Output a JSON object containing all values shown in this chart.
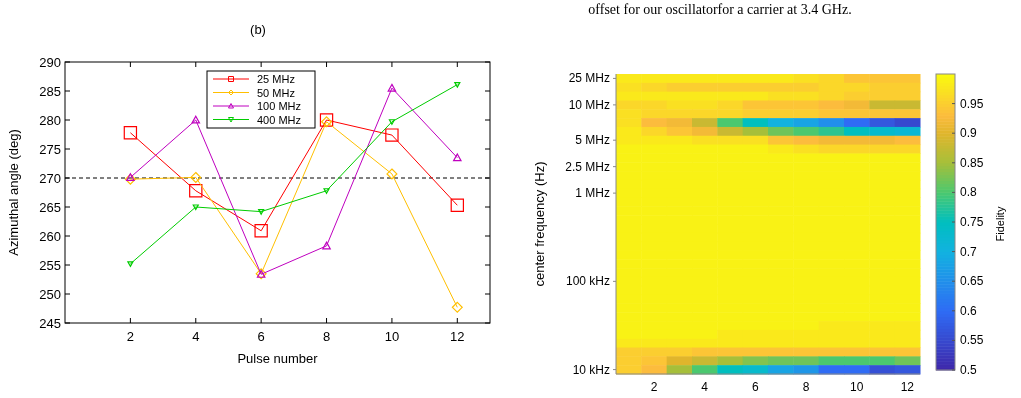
{
  "chart_data": [
    {
      "type": "line",
      "title": "(b)",
      "xlabel": "Pulse number",
      "ylabel": "Azimuthal angle (deg)",
      "x": [
        2,
        4,
        6,
        8,
        10,
        12
      ],
      "series": [
        {
          "name": "25 MHz",
          "color": "#ff0000",
          "marker": "square",
          "values": [
            277.8,
            267.8,
            260.9,
            280.0,
            277.4,
            265.3
          ]
        },
        {
          "name": "50 MHz",
          "color": "#ffbf00",
          "marker": "diamond",
          "values": [
            269.8,
            270.1,
            253.5,
            279.7,
            270.7,
            247.7
          ]
        },
        {
          "name": "100 MHz",
          "color": "#bf00bf",
          "marker": "triangle",
          "values": [
            270.1,
            280.0,
            253.4,
            258.3,
            285.5,
            273.5
          ]
        },
        {
          "name": "400 MHz",
          "color": "#00cc00",
          "marker": "triangle-down",
          "values": [
            255.2,
            265.0,
            264.2,
            267.8,
            279.7,
            286.1
          ]
        }
      ],
      "xlim": [
        0,
        13
      ],
      "xticks": [
        2,
        4,
        6,
        8,
        10,
        12
      ],
      "ylim": [
        245,
        290
      ],
      "yticks": [
        245,
        250,
        255,
        260,
        265,
        270,
        275,
        280,
        285,
        290
      ],
      "ref_lines": [
        {
          "axis": "y",
          "value": 270,
          "color": "#000000",
          "line_style": "dashed"
        }
      ],
      "legend": "top",
      "line_style": "solid",
      "grid": false
    },
    {
      "type": "heatmap",
      "ylabel": "center frequency (Hz)",
      "clabel": "Fidelity",
      "annotations": [
        "offset for our oscillatorfor a carrier at 3.4 GHz."
      ],
      "categories": [
        null,
        "2",
        null,
        "4",
        null,
        "6",
        null,
        "8",
        null,
        "10",
        null,
        "12"
      ],
      "y_categories": [
        "25 MHz",
        null,
        null,
        "10 MHz",
        null,
        null,
        null,
        "5 MHz",
        null,
        null,
        "2.5 MHz",
        null,
        null,
        "1 MHz",
        null,
        null,
        null,
        null,
        null,
        null,
        null,
        null,
        null,
        "100 kHz",
        null,
        null,
        null,
        null,
        null,
        null,
        null,
        null,
        null,
        "10 kHz"
      ],
      "clim": [
        0.5,
        1.0
      ],
      "cticks": [
        0.5,
        0.55,
        0.6,
        0.65,
        0.7,
        0.75,
        0.8,
        0.85,
        0.9,
        0.95
      ],
      "cells": [
        [
          0.98,
          0.98,
          0.98,
          0.98,
          0.98,
          0.98,
          0.98,
          0.97,
          0.96,
          0.94,
          0.94,
          0.94
        ],
        [
          0.97,
          0.96,
          0.95,
          0.95,
          0.95,
          0.95,
          0.95,
          0.95,
          0.96,
          0.96,
          0.95,
          0.95
        ],
        [
          0.98,
          0.98,
          0.98,
          0.98,
          0.98,
          0.98,
          0.97,
          0.97,
          0.96,
          0.95,
          0.95,
          0.95
        ],
        [
          0.96,
          0.96,
          0.97,
          0.97,
          0.96,
          0.94,
          0.94,
          0.94,
          0.93,
          0.92,
          0.88,
          0.88
        ],
        [
          0.97,
          0.96,
          0.96,
          0.96,
          0.96,
          0.95,
          0.95,
          0.95,
          0.94,
          0.94,
          0.94,
          0.94
        ],
        [
          0.97,
          0.93,
          0.92,
          0.88,
          0.8,
          0.75,
          0.7,
          0.68,
          0.65,
          0.6,
          0.57,
          0.55
        ],
        [
          0.98,
          0.96,
          0.94,
          0.92,
          0.88,
          0.85,
          0.82,
          0.8,
          0.78,
          0.75,
          0.73,
          0.72
        ],
        [
          0.98,
          0.98,
          0.98,
          0.97,
          0.97,
          0.97,
          0.94,
          0.93,
          0.92,
          0.92,
          0.92,
          0.93
        ],
        [
          0.99,
          0.99,
          0.99,
          0.99,
          0.99,
          0.99,
          0.98,
          0.97,
          0.96,
          0.96,
          0.96,
          0.96
        ],
        [
          0.99,
          0.99,
          0.99,
          0.99,
          0.99,
          0.99,
          0.99,
          0.99,
          0.99,
          0.99,
          0.99,
          0.99
        ],
        [
          0.99,
          0.99,
          0.99,
          0.99,
          0.99,
          0.99,
          0.99,
          0.99,
          0.99,
          0.99,
          0.99,
          0.99
        ],
        [
          0.99,
          0.99,
          0.99,
          0.99,
          0.99,
          0.99,
          0.99,
          0.99,
          0.99,
          0.99,
          0.99,
          0.99
        ],
        [
          0.99,
          0.99,
          0.99,
          0.99,
          0.99,
          0.99,
          0.99,
          0.99,
          0.99,
          0.99,
          0.99,
          0.99
        ],
        [
          0.99,
          0.99,
          0.99,
          0.99,
          0.99,
          0.99,
          0.99,
          0.99,
          0.99,
          0.99,
          0.99,
          0.99
        ],
        [
          0.99,
          0.99,
          0.99,
          0.99,
          0.99,
          0.99,
          0.99,
          0.99,
          0.99,
          0.99,
          0.99,
          0.99
        ],
        [
          0.99,
          0.99,
          0.99,
          0.99,
          0.99,
          0.99,
          0.99,
          0.99,
          0.99,
          0.99,
          0.99,
          0.99
        ],
        [
          0.99,
          0.99,
          0.99,
          0.99,
          0.99,
          0.99,
          0.99,
          0.99,
          0.99,
          0.99,
          0.99,
          0.99
        ],
        [
          0.99,
          0.99,
          0.99,
          0.99,
          0.99,
          0.99,
          0.99,
          0.99,
          0.99,
          0.99,
          0.99,
          0.99
        ],
        [
          0.99,
          0.99,
          0.99,
          0.99,
          0.99,
          0.99,
          0.99,
          0.99,
          0.99,
          0.99,
          0.99,
          0.99
        ],
        [
          0.99,
          0.99,
          0.99,
          0.99,
          0.99,
          0.99,
          0.99,
          0.99,
          0.99,
          0.99,
          0.99,
          0.99
        ],
        [
          0.99,
          0.99,
          0.99,
          0.99,
          0.99,
          0.99,
          0.99,
          0.99,
          0.99,
          0.99,
          0.99,
          0.99
        ],
        [
          0.99,
          0.99,
          0.99,
          0.99,
          0.99,
          0.99,
          0.99,
          0.99,
          0.99,
          0.99,
          0.99,
          0.99
        ],
        [
          0.99,
          0.99,
          0.99,
          0.99,
          0.99,
          0.99,
          0.99,
          0.99,
          0.99,
          0.99,
          0.99,
          0.99
        ],
        [
          0.99,
          0.99,
          0.99,
          0.99,
          0.99,
          0.99,
          0.99,
          0.99,
          0.99,
          0.99,
          0.99,
          0.99
        ],
        [
          0.99,
          0.99,
          0.99,
          0.99,
          0.99,
          0.99,
          0.99,
          0.99,
          0.99,
          0.99,
          0.99,
          0.99
        ],
        [
          0.99,
          0.99,
          0.99,
          0.99,
          0.99,
          0.99,
          0.99,
          0.99,
          0.99,
          0.99,
          0.99,
          0.99
        ],
        [
          0.99,
          0.99,
          0.99,
          0.99,
          0.99,
          0.99,
          0.99,
          0.99,
          0.99,
          0.99,
          0.99,
          0.99
        ],
        [
          0.99,
          0.99,
          0.99,
          0.99,
          0.99,
          0.99,
          0.99,
          0.99,
          0.99,
          0.99,
          0.99,
          0.99
        ],
        [
          0.99,
          0.99,
          0.99,
          0.99,
          0.99,
          0.99,
          0.99,
          0.99,
          0.98,
          0.98,
          0.98,
          0.98
        ],
        [
          0.99,
          0.99,
          0.99,
          0.99,
          0.98,
          0.98,
          0.98,
          0.98,
          0.98,
          0.98,
          0.98,
          0.98
        ],
        [
          0.98,
          0.98,
          0.98,
          0.98,
          0.98,
          0.98,
          0.98,
          0.98,
          0.98,
          0.98,
          0.98,
          0.98
        ],
        [
          0.95,
          0.95,
          0.95,
          0.94,
          0.94,
          0.94,
          0.94,
          0.94,
          0.94,
          0.94,
          0.94,
          0.94
        ],
        [
          0.95,
          0.94,
          0.9,
          0.88,
          0.85,
          0.83,
          0.82,
          0.82,
          0.8,
          0.8,
          0.8,
          0.82
        ],
        [
          0.95,
          0.93,
          0.85,
          0.8,
          0.75,
          0.73,
          0.68,
          0.66,
          0.6,
          0.6,
          0.56,
          0.57
        ]
      ]
    }
  ]
}
